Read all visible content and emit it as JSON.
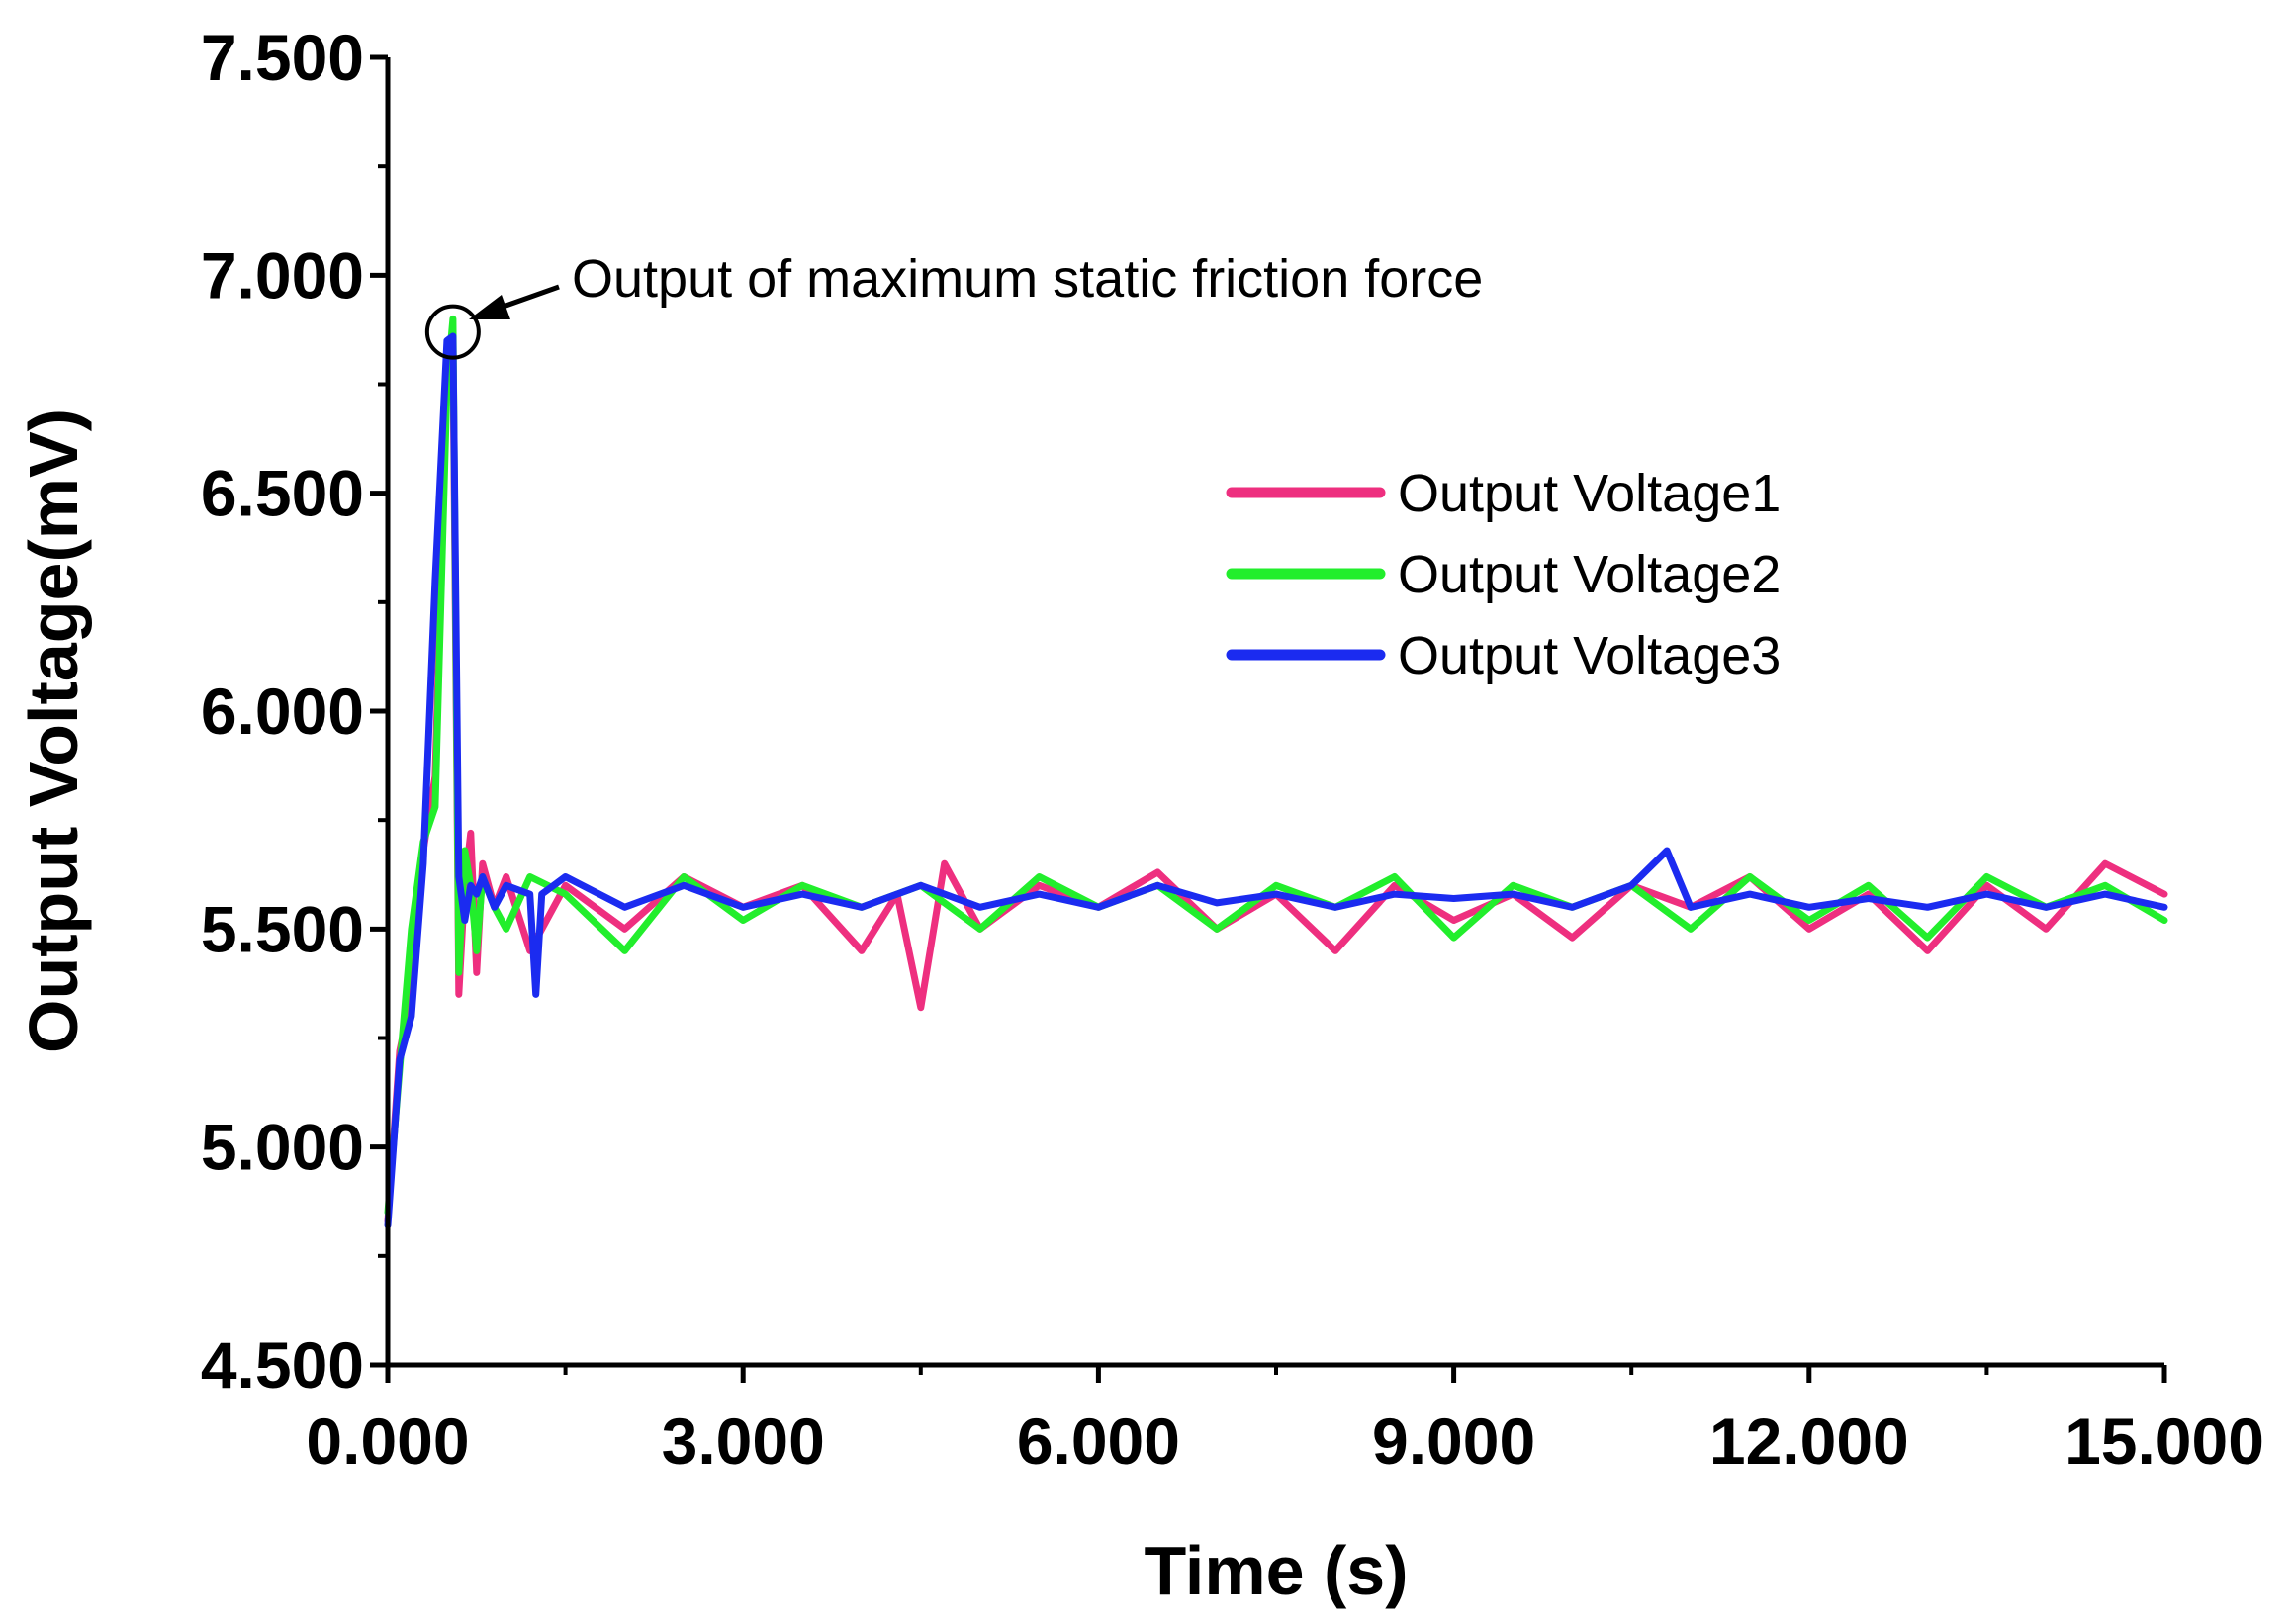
{
  "chart_data": {
    "type": "line",
    "title": "",
    "xlabel": "Time (s)",
    "ylabel": "Output Voltage(mV)",
    "xlim": [
      0,
      15
    ],
    "ylim": [
      4.5,
      7.5
    ],
    "x_ticks": [
      0,
      3,
      6,
      9,
      12,
      15
    ],
    "x_tick_labels": [
      "0.000",
      "3.000",
      "6.000",
      "9.000",
      "12.000",
      "15.000"
    ],
    "y_ticks": [
      4.5,
      5.0,
      5.5,
      6.0,
      6.5,
      7.0,
      7.5
    ],
    "y_tick_labels": [
      "4.500",
      "5.000",
      "5.500",
      "6.000",
      "6.500",
      "7.000",
      "7.500"
    ],
    "grid": false,
    "legend_position": "right",
    "annotation": {
      "text": "Output of maximum static friction force",
      "x": 0.55,
      "y": 6.87
    },
    "series": [
      {
        "name": "Output Voltage1",
        "color": "#ee2f7f",
        "x": [
          0,
          0.1,
          0.2,
          0.3,
          0.4,
          0.5,
          0.55,
          0.6,
          0.65,
          0.7,
          0.75,
          0.8,
          0.9,
          1.0,
          1.2,
          1.5,
          2.0,
          2.5,
          3.0,
          3.5,
          4.0,
          4.3,
          4.5,
          4.7,
          5.0,
          5.5,
          6.0,
          6.5,
          7.0,
          7.5,
          8.0,
          8.5,
          9.0,
          9.5,
          10.0,
          10.5,
          11.0,
          11.5,
          12.0,
          12.5,
          13.0,
          13.5,
          14.0,
          14.5,
          15.0
        ],
        "y": [
          4.83,
          5.22,
          5.35,
          5.68,
          5.85,
          6.8,
          6.83,
          5.35,
          5.6,
          5.72,
          5.4,
          5.65,
          5.55,
          5.62,
          5.45,
          5.6,
          5.5,
          5.62,
          5.55,
          5.6,
          5.45,
          5.58,
          5.32,
          5.65,
          5.5,
          5.6,
          5.55,
          5.63,
          5.5,
          5.58,
          5.45,
          5.6,
          5.52,
          5.58,
          5.48,
          5.6,
          5.55,
          5.62,
          5.5,
          5.58,
          5.45,
          5.6,
          5.5,
          5.65,
          5.58
        ]
      },
      {
        "name": "Output Voltage2",
        "color": "#22ee2c",
        "x": [
          0,
          0.1,
          0.2,
          0.3,
          0.4,
          0.5,
          0.55,
          0.6,
          0.65,
          0.7,
          0.75,
          0.8,
          0.9,
          1.0,
          1.2,
          1.5,
          2.0,
          2.5,
          3.0,
          3.5,
          4.0,
          4.5,
          5.0,
          5.5,
          6.0,
          6.5,
          7.0,
          7.5,
          8.0,
          8.5,
          9.0,
          9.5,
          10.0,
          10.5,
          11.0,
          11.5,
          12.0,
          12.5,
          13.0,
          13.5,
          14.0,
          14.5,
          15.0
        ],
        "y": [
          4.85,
          5.18,
          5.5,
          5.7,
          5.78,
          6.75,
          6.9,
          5.4,
          5.68,
          5.6,
          5.45,
          5.62,
          5.55,
          5.5,
          5.62,
          5.58,
          5.45,
          5.62,
          5.52,
          5.6,
          5.55,
          5.6,
          5.5,
          5.62,
          5.55,
          5.6,
          5.5,
          5.6,
          5.55,
          5.62,
          5.48,
          5.6,
          5.55,
          5.6,
          5.5,
          5.62,
          5.52,
          5.6,
          5.48,
          5.62,
          5.55,
          5.6,
          5.52
        ]
      },
      {
        "name": "Output Voltage3",
        "color": "#1b2bf0",
        "x": [
          0,
          0.1,
          0.2,
          0.3,
          0.4,
          0.5,
          0.55,
          0.6,
          0.65,
          0.7,
          0.75,
          0.8,
          0.9,
          1.0,
          1.2,
          1.25,
          1.3,
          1.5,
          2.0,
          2.5,
          3.0,
          3.5,
          4.0,
          4.5,
          5.0,
          5.5,
          6.0,
          6.5,
          7.0,
          7.5,
          8.0,
          8.5,
          9.0,
          9.5,
          10.0,
          10.5,
          10.8,
          11.0,
          11.5,
          12.0,
          12.5,
          13.0,
          13.5,
          14.0,
          14.5,
          15.0
        ],
        "y": [
          4.82,
          5.2,
          5.3,
          5.65,
          6.3,
          6.85,
          6.86,
          5.62,
          5.52,
          5.6,
          5.58,
          5.62,
          5.55,
          5.6,
          5.58,
          5.35,
          5.58,
          5.62,
          5.55,
          5.6,
          5.55,
          5.58,
          5.55,
          5.6,
          5.55,
          5.58,
          5.55,
          5.6,
          5.56,
          5.58,
          5.55,
          5.58,
          5.57,
          5.58,
          5.55,
          5.6,
          5.68,
          5.55,
          5.58,
          5.55,
          5.57,
          5.55,
          5.58,
          5.55,
          5.58,
          5.55
        ]
      }
    ]
  }
}
